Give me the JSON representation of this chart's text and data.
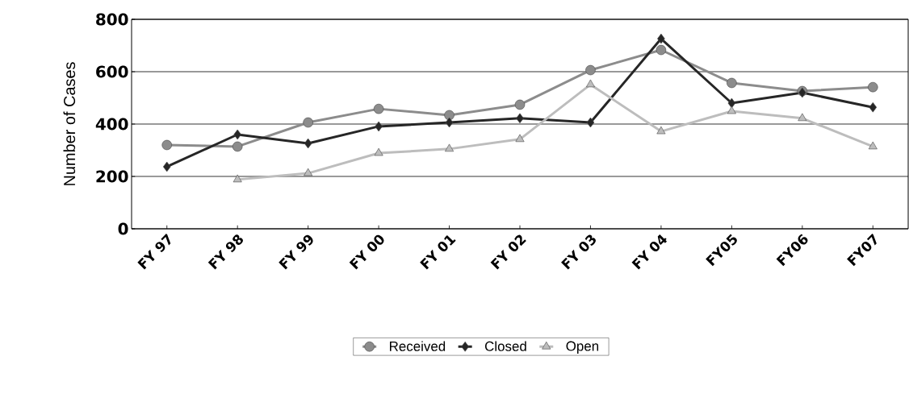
{
  "chart_data": {
    "type": "line",
    "ylabel": "Number of Cases",
    "categories": [
      "FY 97",
      "FY 98",
      "FY 99",
      "FY 00",
      "FY 01",
      "FY 02",
      "FY 03",
      "FY 04",
      "FY05",
      "FY06",
      "FY07"
    ],
    "series": [
      {
        "name": "Received",
        "color": "#8c8c8c",
        "marker": "circle",
        "values": [
          320,
          314,
          406,
          458,
          434,
          474,
          606,
          683,
          557,
          526,
          541
        ]
      },
      {
        "name": "Closed",
        "color": "#262626",
        "marker": "diamond",
        "values": [
          237,
          360,
          326,
          391,
          406,
          422,
          406,
          726,
          480,
          520,
          464
        ]
      },
      {
        "name": "Open",
        "color": "#bdbdbd",
        "marker": "triangle",
        "values": [
          null,
          188,
          212,
          289,
          305,
          342,
          551,
          372,
          449,
          422,
          314
        ]
      }
    ],
    "ylim": [
      0,
      800
    ],
    "yticks": [
      0,
      200,
      400,
      600,
      800
    ],
    "grid": "y",
    "legend": "bottom",
    "line_style": "solid"
  }
}
